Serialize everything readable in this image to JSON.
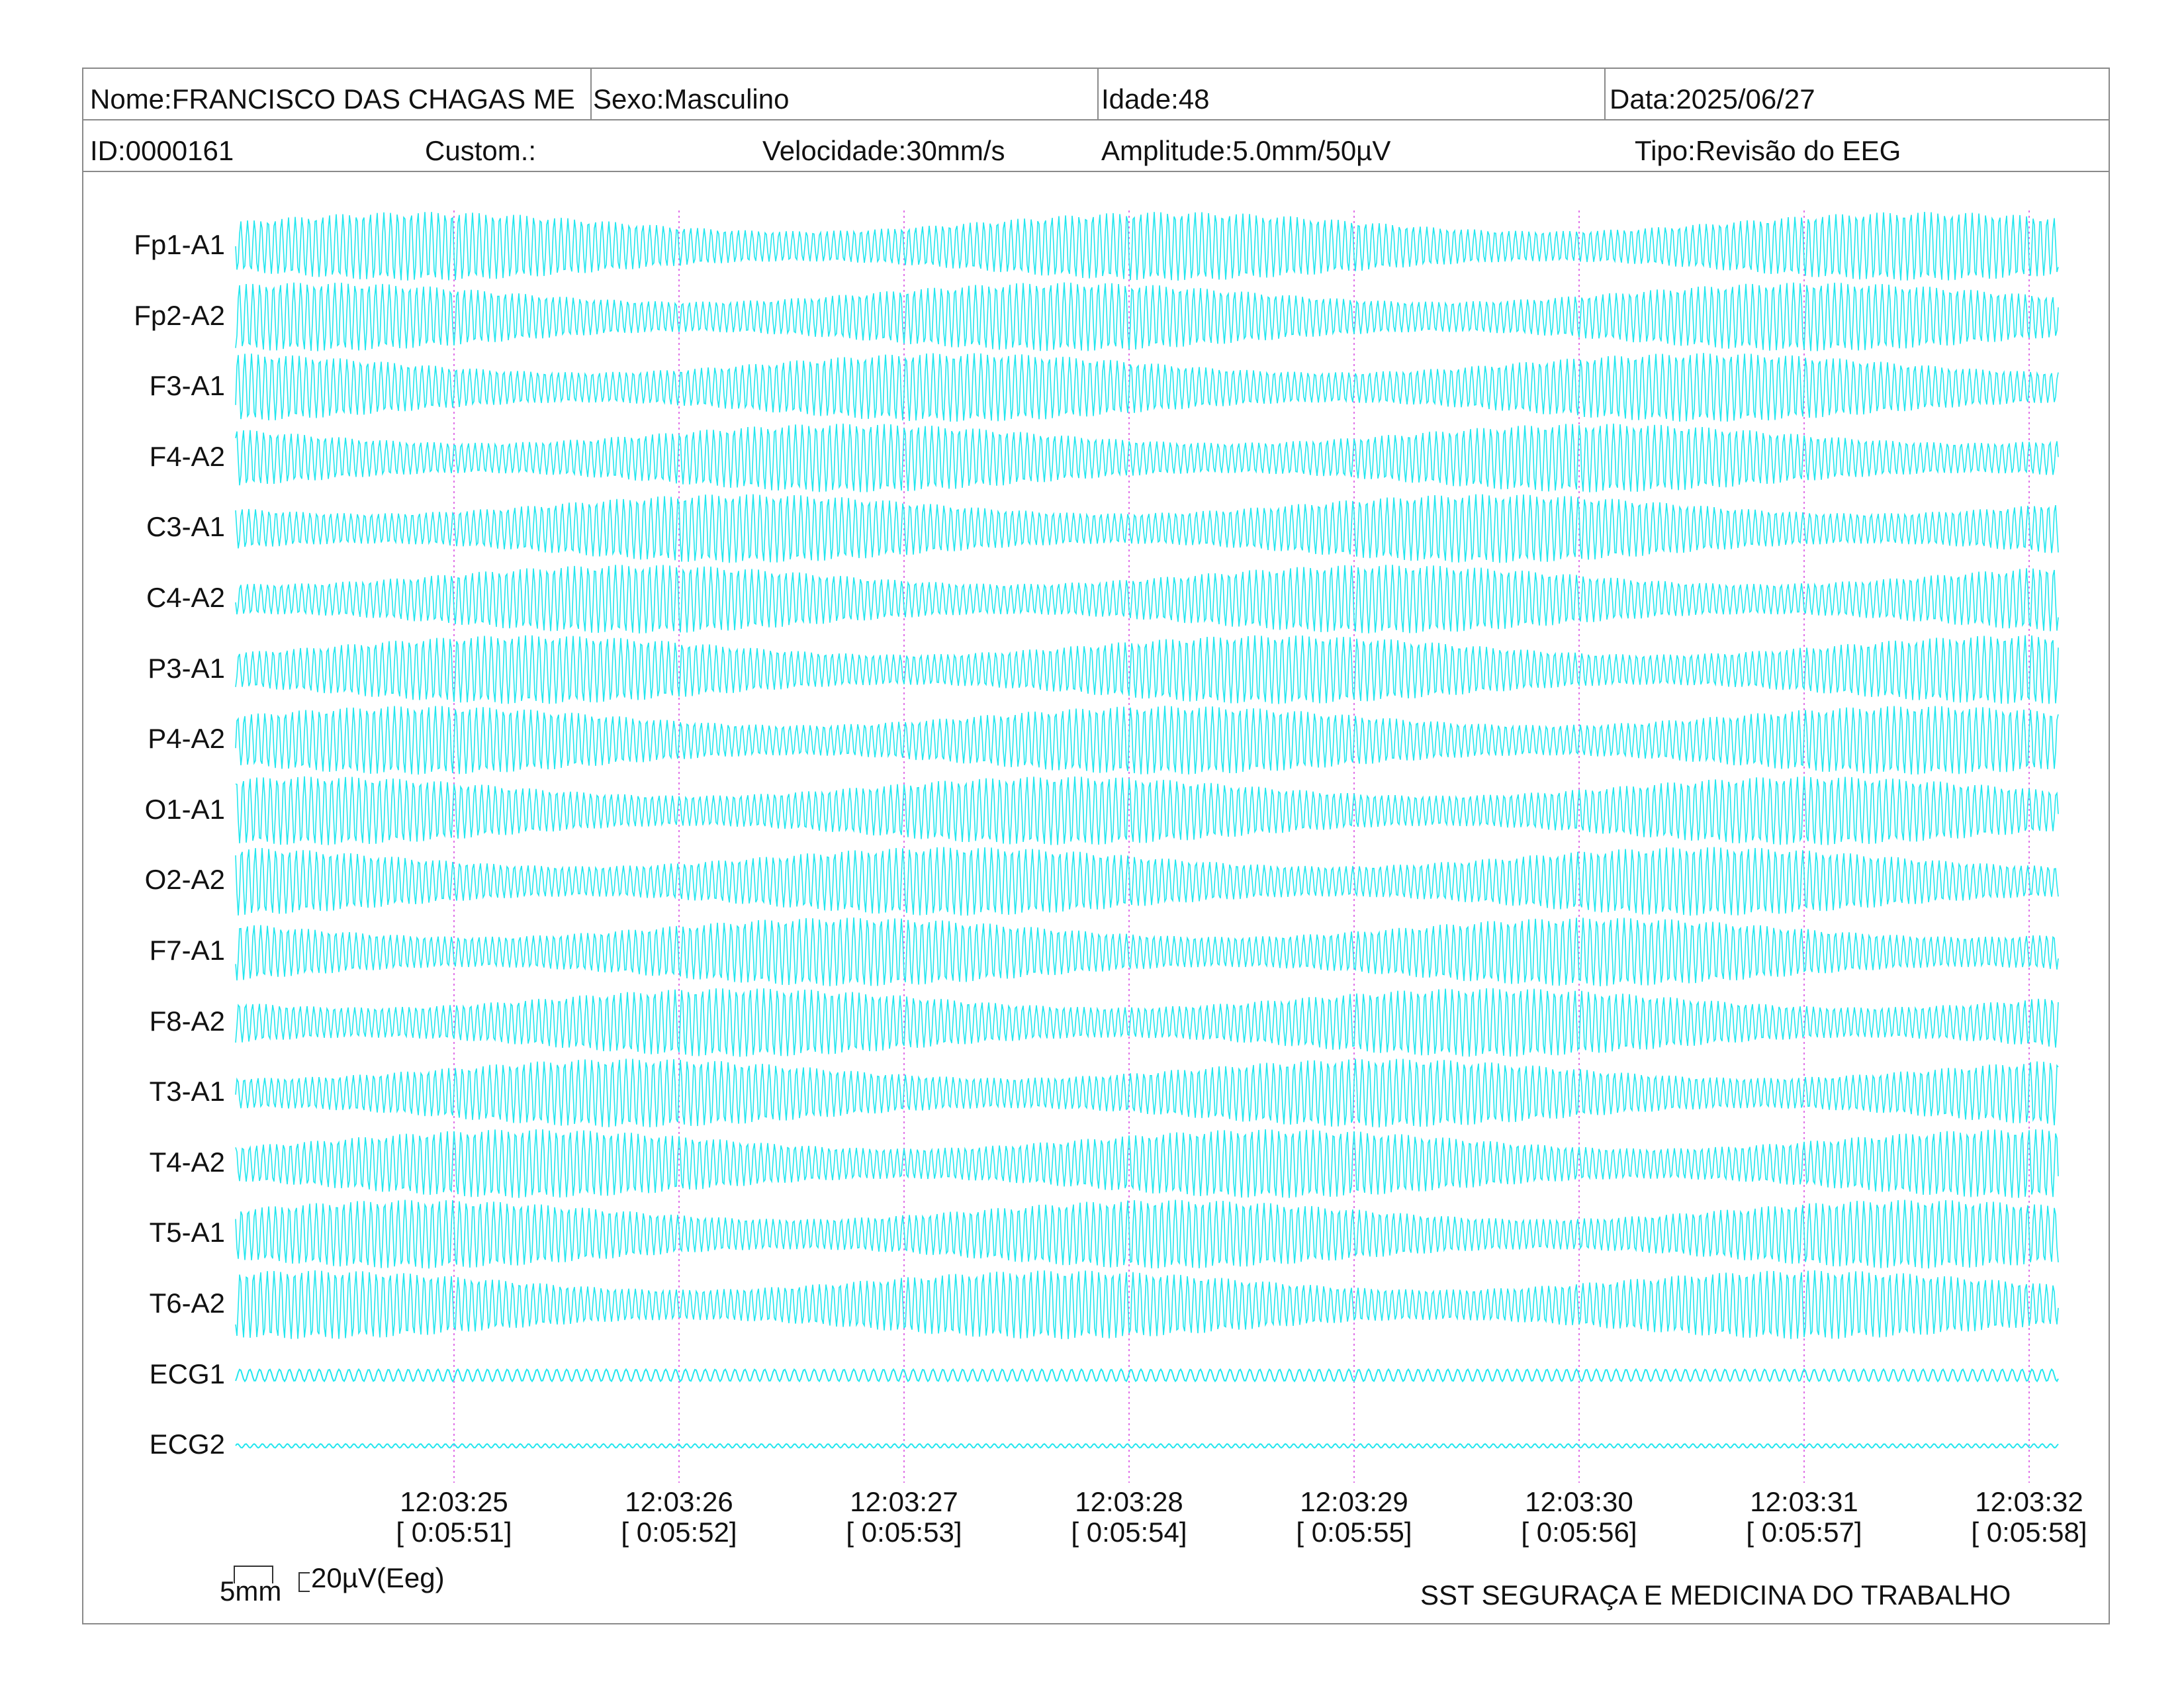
{
  "header": {
    "nome": "Nome:FRANCISCO DAS CHAGAS ME",
    "sexo": "Sexo:Masculino",
    "idade": "Idade:48",
    "data": "Data:2025/06/27",
    "id": "ID:0000161",
    "custom": "Custom.:",
    "velocidade": "Velocidade:30mm/s",
    "amplitude": "Amplitude:5.0mm/50µV",
    "tipo": "Tipo:Revisão do EEG"
  },
  "channels": [
    "Fp1-A1",
    "Fp2-A2",
    "F3-A1",
    "F4-A2",
    "C3-A1",
    "C4-A2",
    "P3-A1",
    "P4-A2",
    "O1-A1",
    "O2-A2",
    "F7-A1",
    "F8-A2",
    "T3-A1",
    "T4-A2",
    "T5-A1",
    "T6-A2",
    "ECG1",
    "ECG2"
  ],
  "time_marks": [
    {
      "clock": "12:03:25",
      "elapsed": "[ 0:05:51]"
    },
    {
      "clock": "12:03:26",
      "elapsed": "[ 0:05:52]"
    },
    {
      "clock": "12:03:27",
      "elapsed": "[ 0:05:53]"
    },
    {
      "clock": "12:03:28",
      "elapsed": "[ 0:05:54]"
    },
    {
      "clock": "12:03:29",
      "elapsed": "[ 0:05:55]"
    },
    {
      "clock": "12:03:30",
      "elapsed": "[ 0:05:56]"
    },
    {
      "clock": "12:03:31",
      "elapsed": "[ 0:05:57]"
    },
    {
      "clock": "12:03:32",
      "elapsed": "[ 0:05:58]"
    }
  ],
  "scale": {
    "time": "5mm",
    "amplitude": "20µV(Eeg)"
  },
  "footer": {
    "institution": "SST SEGURAÇA E MEDICINA DO TRABALHO"
  },
  "colors": {
    "trace": "#22e6ee",
    "marker": "#e070e8",
    "border": "#8a8a8a"
  }
}
